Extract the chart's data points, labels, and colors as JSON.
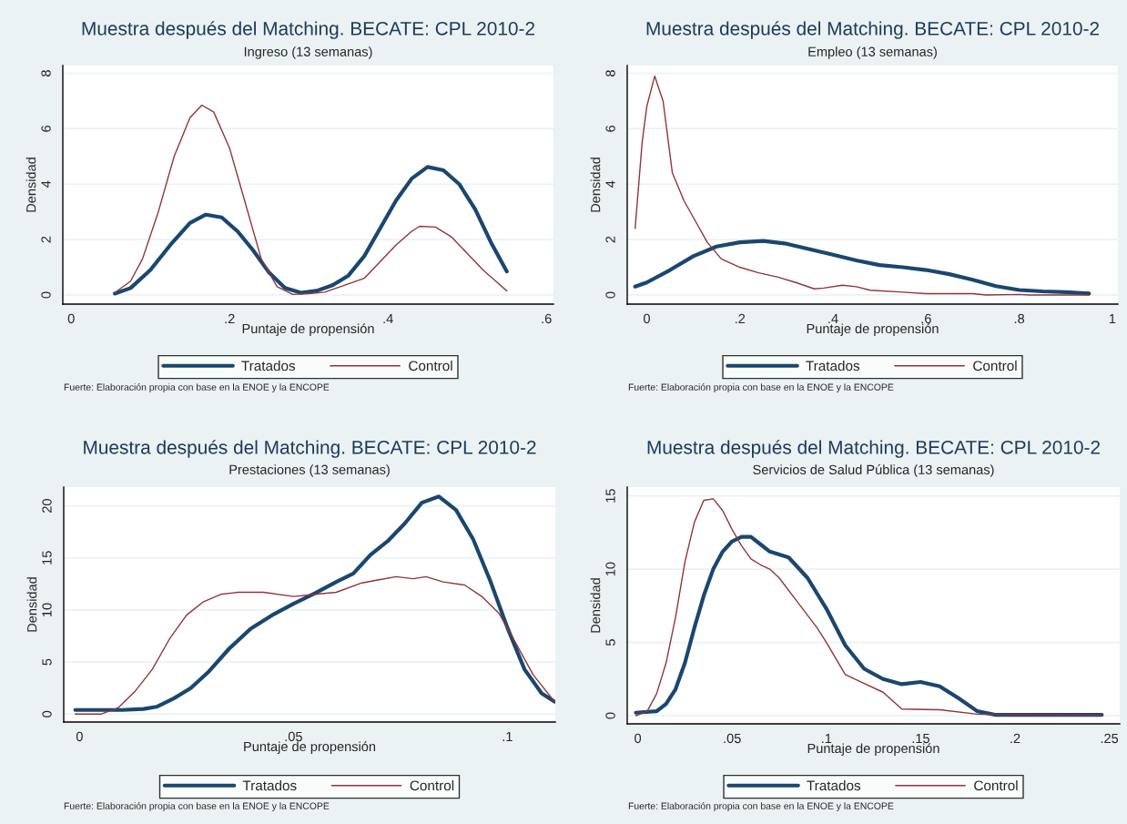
{
  "chart_data": [
    {
      "type": "line",
      "title": "Muestra después del Matching. BECATE: CPL 2010-2",
      "subtitle": "Ingreso (13 semanas)",
      "xlabel": "Puntaje de propensión",
      "ylabel": "Densidad",
      "annotations": [
        "Fuerte: Elaboración propia con base en la ENOE y la ENCOPE"
      ],
      "grid": "y",
      "legend": "bottom",
      "xlim": [
        -0.0106,
        0.609
      ],
      "ylim": [
        -0.33,
        8.28
      ],
      "xticks": [
        0,
        {
          "value": 0.2,
          "label": ".2"
        },
        {
          "value": 0.4,
          "label": ".4"
        },
        {
          "value": 0.6,
          "label": ".6"
        }
      ],
      "yticks": [
        0,
        2,
        4,
        6,
        8
      ],
      "series": [
        {
          "name": "Tratados",
          "color": "#1a476f",
          "x": [
            0.055,
            0.075,
            0.1,
            0.125,
            0.15,
            0.17,
            0.19,
            0.21,
            0.23,
            0.25,
            0.27,
            0.29,
            0.31,
            0.33,
            0.35,
            0.37,
            0.39,
            0.41,
            0.43,
            0.45,
            0.47,
            0.49,
            0.51,
            0.53,
            0.55
          ],
          "values": [
            0.05,
            0.25,
            0.9,
            1.8,
            2.6,
            2.9,
            2.8,
            2.3,
            1.6,
            0.8,
            0.25,
            0.08,
            0.15,
            0.35,
            0.7,
            1.4,
            2.4,
            3.4,
            4.2,
            4.62,
            4.5,
            4.0,
            3.1,
            1.9,
            0.85
          ]
        },
        {
          "name": "Control",
          "color": "#90353b",
          "x": [
            0.055,
            0.075,
            0.09,
            0.11,
            0.13,
            0.15,
            0.165,
            0.18,
            0.2,
            0.22,
            0.24,
            0.26,
            0.28,
            0.3,
            0.32,
            0.34,
            0.37,
            0.39,
            0.41,
            0.43,
            0.44,
            0.46,
            0.48,
            0.5,
            0.52,
            0.54,
            0.55
          ],
          "values": [
            0.08,
            0.5,
            1.3,
            3.0,
            5.0,
            6.4,
            6.85,
            6.6,
            5.3,
            3.3,
            1.3,
            0.3,
            0.02,
            0.05,
            0.1,
            0.3,
            0.6,
            1.2,
            1.8,
            2.3,
            2.48,
            2.45,
            2.1,
            1.5,
            0.9,
            0.4,
            0.15
          ]
        }
      ]
    },
    {
      "type": "line",
      "title": "Muestra después del Matching. BECATE: CPL 2010-2",
      "subtitle": "Empleo (13 semanas)",
      "xlabel": "Puntaje de propensión",
      "ylabel": "Densidad",
      "annotations": [
        "Fuerte: Elaboración propia con base en la ENOE y la ENCOPE"
      ],
      "grid": "y",
      "legend": "bottom",
      "xlim": [
        -0.042,
        1.012
      ],
      "ylim": [
        -0.33,
        8.28
      ],
      "xticks": [
        0,
        {
          "value": 0.2,
          "label": ".2"
        },
        {
          "value": 0.4,
          "label": ".4"
        },
        {
          "value": 0.6,
          "label": ".6"
        },
        {
          "value": 0.8,
          "label": ".8"
        },
        1
      ],
      "yticks": [
        0,
        2,
        4,
        6,
        8
      ],
      "series": [
        {
          "name": "Tratados",
          "color": "#1a476f",
          "x": [
            -0.025,
            0,
            0.05,
            0.1,
            0.15,
            0.2,
            0.25,
            0.3,
            0.35,
            0.4,
            0.45,
            0.5,
            0.55,
            0.6,
            0.65,
            0.7,
            0.75,
            0.8,
            0.85,
            0.9,
            0.95
          ],
          "values": [
            0.3,
            0.45,
            0.9,
            1.4,
            1.75,
            1.9,
            1.95,
            1.85,
            1.65,
            1.45,
            1.25,
            1.08,
            1.0,
            0.9,
            0.75,
            0.55,
            0.32,
            0.18,
            0.13,
            0.1,
            0.05
          ]
        },
        {
          "name": "Control",
          "color": "#90353b",
          "x": [
            -0.025,
            -0.01,
            0,
            0.017,
            0.035,
            0.055,
            0.08,
            0.1,
            0.13,
            0.16,
            0.2,
            0.24,
            0.28,
            0.32,
            0.36,
            0.38,
            0.42,
            0.45,
            0.48,
            0.55,
            0.6,
            0.7,
            0.73,
            0.8,
            0.82,
            0.95
          ],
          "values": [
            2.4,
            5.5,
            6.8,
            7.9,
            7.0,
            4.4,
            3.4,
            2.8,
            1.9,
            1.3,
            1.0,
            0.8,
            0.65,
            0.45,
            0.22,
            0.25,
            0.35,
            0.3,
            0.17,
            0.1,
            0.05,
            0.05,
            0.0,
            0.02,
            0.0,
            0.0
          ]
        }
      ]
    },
    {
      "type": "line",
      "title": "Muestra después del Matching. BECATE: CPL 2010-2",
      "subtitle": "Prestaciones (13 semanas)",
      "xlabel": "Puntaje de propensión",
      "ylabel": "Densidad",
      "annotations": [
        "Fuerte: Elaboración propia con base en la ENOE y la ENCOPE"
      ],
      "grid": "y",
      "legend": "bottom",
      "xlim": [
        -0.0037,
        0.1112
      ],
      "ylim": [
        -0.76,
        21.8
      ],
      "xticks": [
        0,
        {
          "value": 0.05,
          "label": ".05"
        },
        {
          "value": 0.1,
          "label": ".1"
        }
      ],
      "yticks": [
        0,
        5,
        10,
        15,
        20
      ],
      "series": [
        {
          "name": "Tratados",
          "color": "#1a476f",
          "x": [
            -0.001,
            0.01,
            0.015,
            0.018,
            0.022,
            0.026,
            0.03,
            0.035,
            0.04,
            0.045,
            0.05,
            0.055,
            0.06,
            0.064,
            0.068,
            0.072,
            0.076,
            0.08,
            0.084,
            0.088,
            0.092,
            0.096,
            0.1,
            0.104,
            0.108,
            0.111
          ],
          "values": [
            0.4,
            0.4,
            0.5,
            0.7,
            1.5,
            2.5,
            4.0,
            6.3,
            8.2,
            9.5,
            10.6,
            11.6,
            12.7,
            13.5,
            15.3,
            16.6,
            18.3,
            20.3,
            20.9,
            19.6,
            16.8,
            12.8,
            8.3,
            4.3,
            2.0,
            1.2
          ]
        },
        {
          "name": "Control",
          "color": "#90353b",
          "x": [
            -0.001,
            0.005,
            0.009,
            0.013,
            0.017,
            0.021,
            0.025,
            0.029,
            0.033,
            0.037,
            0.043,
            0.05,
            0.055,
            0.06,
            0.066,
            0.07,
            0.074,
            0.078,
            0.081,
            0.085,
            0.09,
            0.094,
            0.098,
            0.102,
            0.106,
            0.111
          ],
          "values": [
            0,
            0,
            0.6,
            2.2,
            4.3,
            7.2,
            9.5,
            10.8,
            11.5,
            11.7,
            11.7,
            11.3,
            11.5,
            11.7,
            12.6,
            12.9,
            13.2,
            13.0,
            13.2,
            12.7,
            12.4,
            11.3,
            9.7,
            6.8,
            3.8,
            1.2
          ]
        }
      ]
    },
    {
      "type": "line",
      "title": "Muestra después del Matching. BECATE: CPL 2010-2",
      "subtitle": "Servicios de Salud Pública (13 semanas)",
      "xlabel": "Puntaje de propensión",
      "ylabel": "Densidad",
      "annotations": [
        "Fuerte: Elaboración propia con base en la ENOE y la ENCOPE"
      ],
      "grid": "y",
      "legend": "bottom",
      "xlim": [
        -0.0056,
        0.2555
      ],
      "ylim": [
        -0.56,
        15.6
      ],
      "xticks": [
        0,
        {
          "value": 0.05,
          "label": ".05"
        },
        {
          "value": 0.1,
          "label": ".1"
        },
        {
          "value": 0.15,
          "label": ".15"
        },
        {
          "value": 0.2,
          "label": ".2"
        },
        {
          "value": 0.25,
          "label": ".25"
        }
      ],
      "yticks": [
        0,
        5,
        10,
        15
      ],
      "series": [
        {
          "name": "Tratados",
          "color": "#1a476f",
          "x": [
            -0.001,
            0.01,
            0.015,
            0.02,
            0.025,
            0.03,
            0.035,
            0.04,
            0.045,
            0.05,
            0.055,
            0.06,
            0.065,
            0.07,
            0.08,
            0.09,
            0.1,
            0.11,
            0.12,
            0.13,
            0.14,
            0.15,
            0.16,
            0.17,
            0.18,
            0.19,
            0.246
          ],
          "values": [
            0.2,
            0.3,
            0.8,
            1.8,
            3.6,
            6.0,
            8.2,
            10.0,
            11.2,
            11.9,
            12.2,
            12.2,
            11.7,
            11.2,
            10.8,
            9.4,
            7.3,
            4.8,
            3.2,
            2.5,
            2.15,
            2.3,
            2.0,
            1.2,
            0.3,
            0.05,
            0.05
          ]
        },
        {
          "name": "Control",
          "color": "#90353b",
          "x": [
            -0.001,
            0.005,
            0.01,
            0.015,
            0.02,
            0.025,
            0.03,
            0.035,
            0.04,
            0.045,
            0.05,
            0.055,
            0.06,
            0.065,
            0.07,
            0.075,
            0.085,
            0.095,
            0.1,
            0.11,
            0.12,
            0.13,
            0.14,
            0.16,
            0.18,
            0.2,
            0.246
          ],
          "values": [
            0,
            0.3,
            1.5,
            3.6,
            6.7,
            10.5,
            13.2,
            14.7,
            14.8,
            14.0,
            12.7,
            11.6,
            10.7,
            10.3,
            10.0,
            9.4,
            7.7,
            6.0,
            5.0,
            2.8,
            2.2,
            1.6,
            0.45,
            0.4,
            0.1,
            0.05,
            0.03
          ]
        }
      ]
    }
  ]
}
